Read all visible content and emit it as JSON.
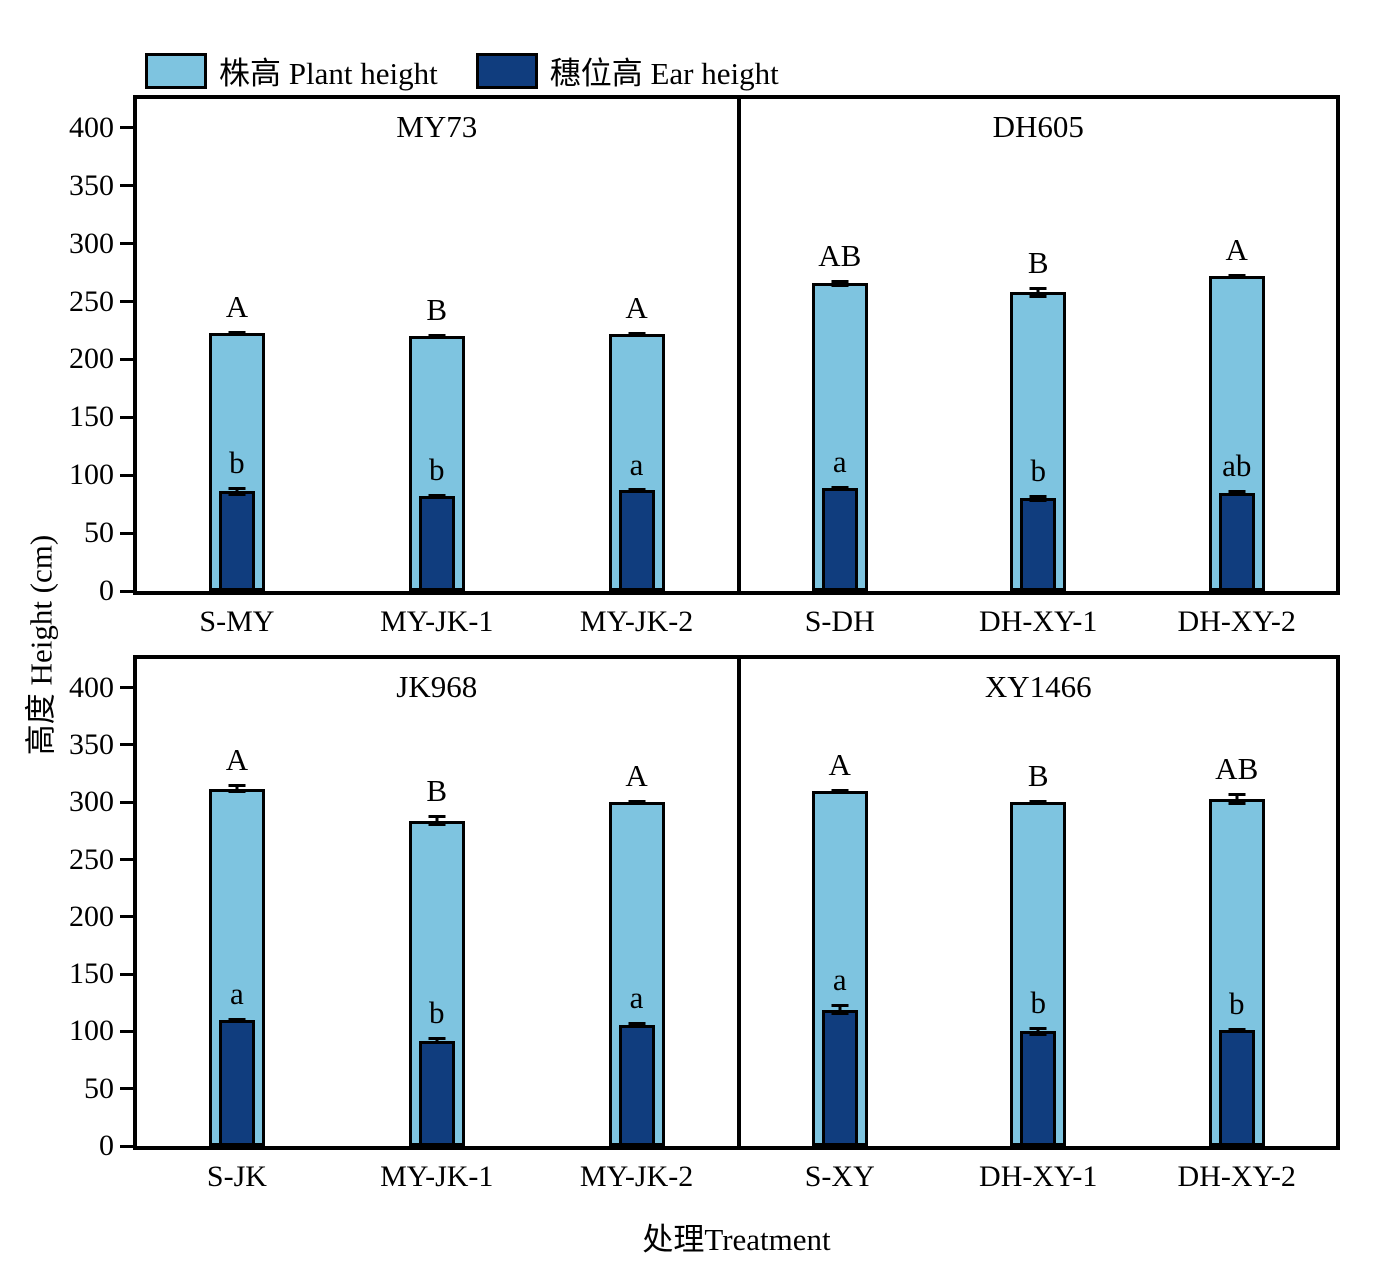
{
  "chart_data": {
    "type": "bar",
    "xlabel": "处理Treatment",
    "ylabel": "高度 Height (cm)",
    "ylim": [
      0,
      425
    ],
    "yticks": [
      0,
      50,
      100,
      150,
      200,
      250,
      300,
      350,
      400
    ],
    "grid": false,
    "legend_position": "top-left",
    "legend": [
      {
        "label": "株高 Plant height",
        "color": "#7ec4e0"
      },
      {
        "label": "穗位高 Ear height",
        "color": "#103d7e"
      }
    ],
    "bar_border_color": "#000000",
    "panels": [
      {
        "title": "MY73",
        "categories": [
          "S-MY",
          "MY-JK-1",
          "MY-JK-2"
        ],
        "series": [
          {
            "name": "株高 Plant height",
            "values": [
              223,
              220,
              222
            ],
            "errors": [
              2,
              2,
              2
            ],
            "letters": [
              "A",
              "B",
              "A"
            ]
          },
          {
            "name": "穗位高 Ear height",
            "values": [
              86,
              82,
              87
            ],
            "errors": [
              4,
              2,
              1
            ],
            "letters": [
              "b",
              "b",
              "a"
            ]
          }
        ]
      },
      {
        "title": "DH605",
        "categories": [
          "S-DH",
          "DH-XY-1",
          "DH-XY-2"
        ],
        "series": [
          {
            "name": "株高 Plant height",
            "values": [
              266,
              258,
              272
            ],
            "errors": [
              3,
              5,
              2
            ],
            "letters": [
              "AB",
              "B",
              "A"
            ]
          },
          {
            "name": "穗位高 Ear height",
            "values": [
              89,
              80,
              85
            ],
            "errors": [
              2,
              3,
              2
            ],
            "letters": [
              "a",
              "b",
              "ab"
            ]
          }
        ]
      },
      {
        "title": "JK968",
        "categories": [
          "S-JK",
          "MY-JK-1",
          "MY-JK-2"
        ],
        "series": [
          {
            "name": "株高 Plant height",
            "values": [
              312,
              284,
              300
            ],
            "errors": [
              4,
              5,
              2
            ],
            "letters": [
              "A",
              "B",
              "A"
            ]
          },
          {
            "name": "穗位高 Ear height",
            "values": [
              110,
              92,
              106
            ],
            "errors": [
              2,
              3,
              2
            ],
            "letters": [
              "a",
              "b",
              "a"
            ]
          }
        ]
      },
      {
        "title": "XY1466",
        "categories": [
          "S-XY",
          "DH-XY-1",
          "DH-XY-2"
        ],
        "series": [
          {
            "name": "株高 Plant height",
            "values": [
              310,
              300,
              303
            ],
            "errors": [
              2,
              2,
              5
            ],
            "letters": [
              "A",
              "B",
              "AB"
            ]
          },
          {
            "name": "穗位高 Ear height",
            "values": [
              119,
              100,
              101
            ],
            "errors": [
              5,
              4,
              2
            ],
            "letters": [
              "a",
              "b",
              "b"
            ]
          }
        ]
      }
    ]
  }
}
